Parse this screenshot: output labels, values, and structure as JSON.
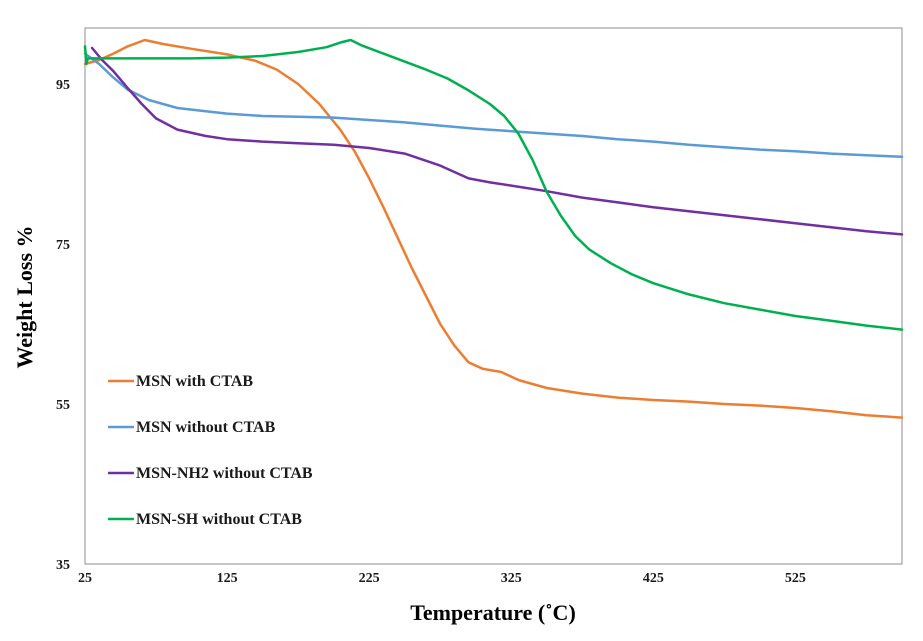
{
  "chart_data": {
    "type": "line",
    "title": "",
    "xlabel": "Temperature (˚C)",
    "ylabel": "Weight Loss %",
    "xlim": [
      25,
      600
    ],
    "ylim": [
      35,
      102
    ],
    "x_ticks": [
      25,
      125,
      225,
      325,
      425,
      525
    ],
    "y_ticks": [
      35,
      55,
      75,
      95
    ],
    "grid": false,
    "legend_position": "bottom-left",
    "series": [
      {
        "name": "MSN with CTAB",
        "color": "#ED7D31",
        "points": [
          [
            25,
            97.5
          ],
          [
            35,
            98.0
          ],
          [
            45,
            98.8
          ],
          [
            55,
            99.7
          ],
          [
            67,
            100.5
          ],
          [
            80,
            100.0
          ],
          [
            100,
            99.4
          ],
          [
            125,
            98.7
          ],
          [
            145,
            97.9
          ],
          [
            160,
            96.8
          ],
          [
            175,
            95.0
          ],
          [
            190,
            92.5
          ],
          [
            205,
            89.2
          ],
          [
            215,
            86.5
          ],
          [
            225,
            83.2
          ],
          [
            235,
            79.6
          ],
          [
            245,
            75.8
          ],
          [
            255,
            72.0
          ],
          [
            265,
            68.5
          ],
          [
            275,
            65.0
          ],
          [
            285,
            62.3
          ],
          [
            295,
            60.2
          ],
          [
            305,
            59.4
          ],
          [
            318,
            59.0
          ],
          [
            330,
            58.0
          ],
          [
            350,
            57.0
          ],
          [
            375,
            56.3
          ],
          [
            400,
            55.8
          ],
          [
            425,
            55.5
          ],
          [
            450,
            55.3
          ],
          [
            475,
            55.0
          ],
          [
            500,
            54.8
          ],
          [
            525,
            54.5
          ],
          [
            550,
            54.1
          ],
          [
            575,
            53.6
          ],
          [
            600,
            53.3
          ]
        ]
      },
      {
        "name": "MSN without CTAB",
        "color": "#5B9BD5",
        "points": [
          [
            25,
            98.8
          ],
          [
            35,
            97.5
          ],
          [
            45,
            95.8
          ],
          [
            55,
            94.3
          ],
          [
            70,
            93.0
          ],
          [
            90,
            92.0
          ],
          [
            110,
            91.6
          ],
          [
            125,
            91.3
          ],
          [
            150,
            91.0
          ],
          [
            175,
            90.9
          ],
          [
            200,
            90.8
          ],
          [
            225,
            90.5
          ],
          [
            250,
            90.2
          ],
          [
            275,
            89.8
          ],
          [
            300,
            89.4
          ],
          [
            325,
            89.1
          ],
          [
            350,
            88.8
          ],
          [
            375,
            88.5
          ],
          [
            400,
            88.1
          ],
          [
            425,
            87.8
          ],
          [
            450,
            87.4
          ],
          [
            475,
            87.1
          ],
          [
            500,
            86.8
          ],
          [
            525,
            86.6
          ],
          [
            550,
            86.3
          ],
          [
            575,
            86.1
          ],
          [
            600,
            85.9
          ]
        ]
      },
      {
        "name": "MSN-NH2 without CTAB",
        "color": "#7030A0",
        "points": [
          [
            30,
            99.5
          ],
          [
            37,
            98.0
          ],
          [
            45,
            96.6
          ],
          [
            55,
            94.5
          ],
          [
            65,
            92.5
          ],
          [
            75,
            90.7
          ],
          [
            90,
            89.3
          ],
          [
            110,
            88.5
          ],
          [
            125,
            88.1
          ],
          [
            150,
            87.8
          ],
          [
            175,
            87.6
          ],
          [
            200,
            87.4
          ],
          [
            225,
            87.0
          ],
          [
            250,
            86.3
          ],
          [
            275,
            84.8
          ],
          [
            295,
            83.2
          ],
          [
            310,
            82.7
          ],
          [
            325,
            82.3
          ],
          [
            350,
            81.6
          ],
          [
            375,
            80.8
          ],
          [
            400,
            80.2
          ],
          [
            425,
            79.6
          ],
          [
            450,
            79.1
          ],
          [
            475,
            78.6
          ],
          [
            500,
            78.1
          ],
          [
            525,
            77.6
          ],
          [
            550,
            77.1
          ],
          [
            575,
            76.6
          ],
          [
            600,
            76.2
          ]
        ]
      },
      {
        "name": "MSN-SH without CTAB",
        "color": "#00B050",
        "points": [
          [
            25,
            99.7
          ],
          [
            26,
            97.5
          ],
          [
            27,
            98.2
          ],
          [
            35,
            98.2
          ],
          [
            60,
            98.2
          ],
          [
            100,
            98.2
          ],
          [
            125,
            98.3
          ],
          [
            150,
            98.5
          ],
          [
            175,
            99.0
          ],
          [
            195,
            99.6
          ],
          [
            205,
            100.2
          ],
          [
            212,
            100.5
          ],
          [
            220,
            99.8
          ],
          [
            235,
            98.8
          ],
          [
            250,
            97.8
          ],
          [
            265,
            96.8
          ],
          [
            280,
            95.7
          ],
          [
            295,
            94.2
          ],
          [
            310,
            92.5
          ],
          [
            320,
            91.0
          ],
          [
            330,
            88.8
          ],
          [
            340,
            85.5
          ],
          [
            350,
            81.5
          ],
          [
            360,
            78.5
          ],
          [
            370,
            76.0
          ],
          [
            380,
            74.3
          ],
          [
            395,
            72.6
          ],
          [
            410,
            71.2
          ],
          [
            425,
            70.1
          ],
          [
            450,
            68.7
          ],
          [
            475,
            67.6
          ],
          [
            500,
            66.8
          ],
          [
            525,
            66.0
          ],
          [
            550,
            65.4
          ],
          [
            575,
            64.8
          ],
          [
            600,
            64.3
          ]
        ]
      }
    ]
  }
}
